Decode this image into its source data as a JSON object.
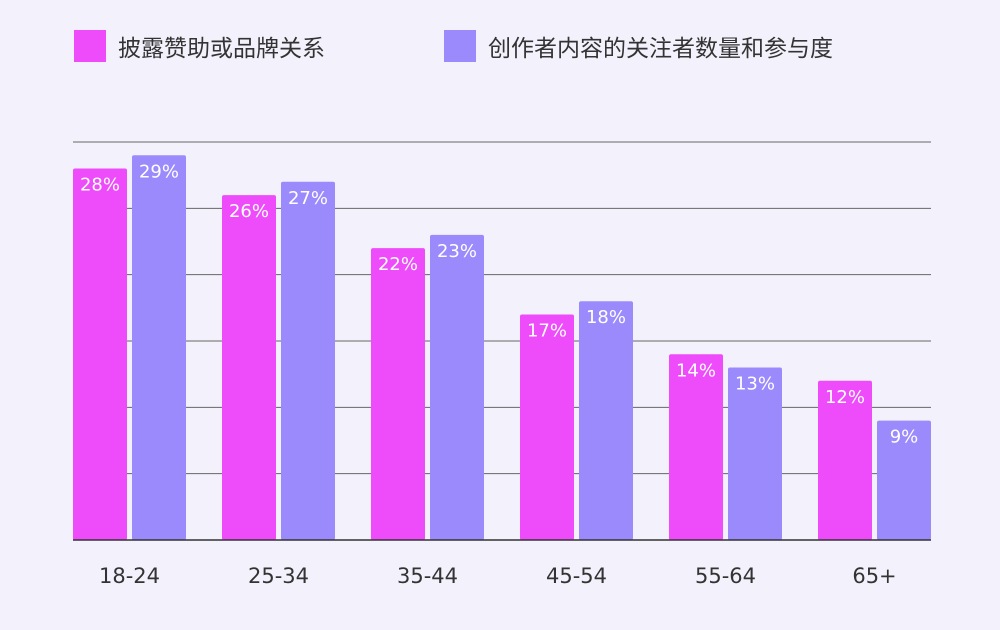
{
  "chart_data": {
    "type": "bar",
    "categories": [
      "18-24",
      "25-34",
      "35-44",
      "45-54",
      "55-64",
      "65+"
    ],
    "series": [
      {
        "name": "披露赞助或品牌关系",
        "values": [
          28,
          26,
          22,
          17,
          14,
          12
        ],
        "color": "#ee4bfa",
        "labels": [
          "28%",
          "26%",
          "22%",
          "17%",
          "14%",
          "12%"
        ]
      },
      {
        "name": "创作者内容的关注者数量和参与度",
        "values": [
          29,
          27,
          23,
          18,
          13,
          9
        ],
        "color": "#9b8afb",
        "labels": [
          "29%",
          "27%",
          "23%",
          "18%",
          "13%",
          "9%"
        ]
      }
    ],
    "ylim": [
      0,
      30
    ],
    "grid": true,
    "legend": "top-left",
    "title": "",
    "xlabel": "",
    "ylabel": ""
  }
}
